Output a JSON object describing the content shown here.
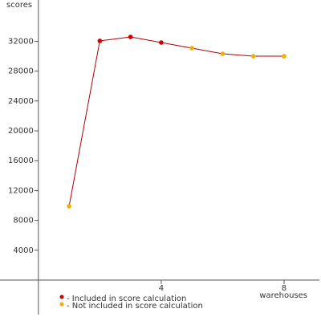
{
  "chart_data": {
    "type": "line",
    "ylabel": "scores",
    "xlabel": "warehouses",
    "x": [
      1,
      2,
      3,
      4,
      5,
      6,
      7,
      8
    ],
    "values": [
      9900,
      32050,
      32580,
      31830,
      31080,
      30320,
      30000,
      30000
    ],
    "included": [
      false,
      true,
      true,
      true,
      false,
      false,
      false,
      false
    ],
    "line_color": "#b00000",
    "legend": [
      {
        "label": "- Included in score calculation",
        "color": "#cc0000"
      },
      {
        "label": "- Not included in score calculation",
        "color": "#f0b000"
      }
    ],
    "xlim": [
      -1.25,
      9.15
    ],
    "xticks": [
      4,
      8
    ],
    "ylim": [
      -4620,
      37530
    ],
    "yticks": [
      4000,
      8000,
      12000,
      16000,
      20000,
      24000,
      28000,
      32000
    ]
  }
}
